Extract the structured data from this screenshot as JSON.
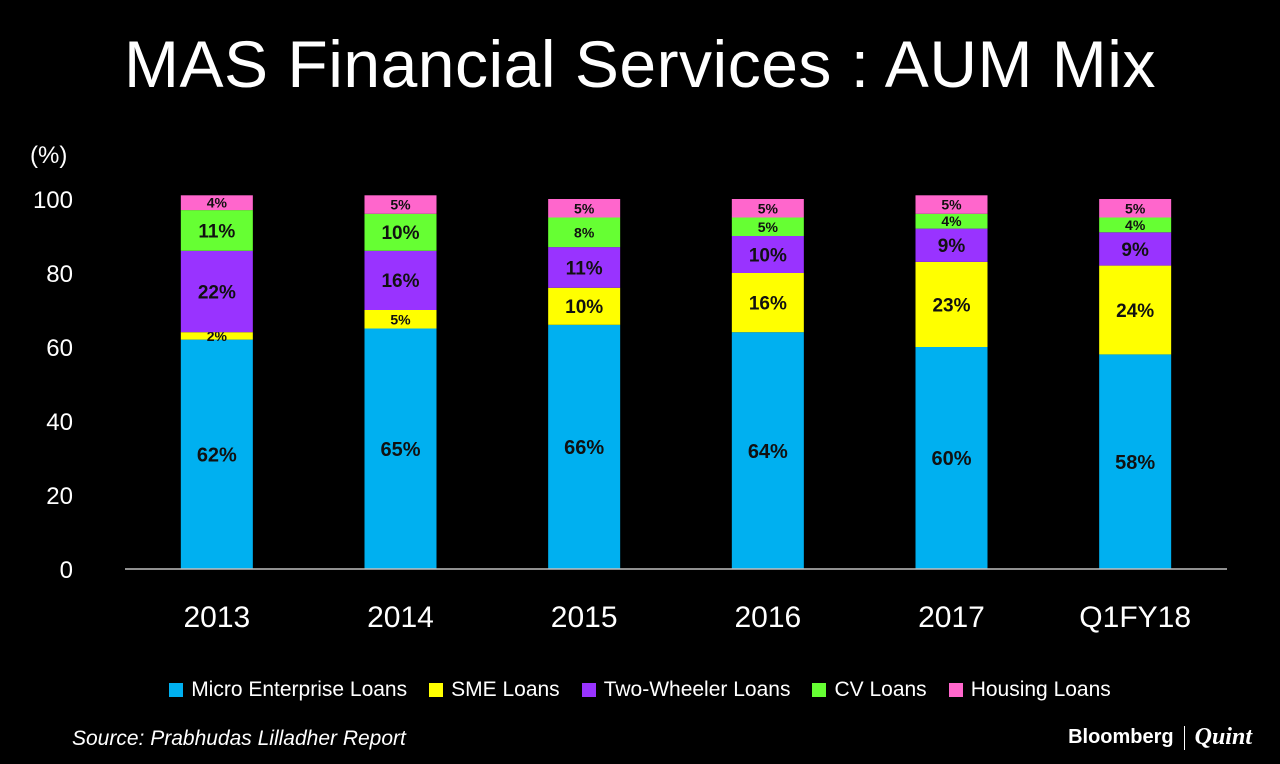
{
  "chart_data": {
    "type": "bar",
    "stacked": true,
    "title": "MAS Financial Services : AUM Mix",
    "ylabel": "(%)",
    "ylim": [
      0,
      100
    ],
    "yticks": [
      0,
      20,
      40,
      60,
      80,
      100
    ],
    "grid": false,
    "legend_position": "bottom",
    "categories": [
      "2013",
      "2014",
      "2015",
      "2016",
      "2017",
      "Q1FY18"
    ],
    "series": [
      {
        "name": "Micro Enterprise Loans",
        "color": "#00B0F0",
        "values": [
          62,
          65,
          66,
          64,
          60,
          58
        ]
      },
      {
        "name": "SME Loans",
        "color": "#FFFF00",
        "values": [
          2,
          5,
          10,
          16,
          23,
          24
        ]
      },
      {
        "name": "Two-Wheeler Loans",
        "color": "#9933FF",
        "values": [
          22,
          16,
          11,
          10,
          9,
          9
        ]
      },
      {
        "name": "CV Loans",
        "color": "#66FF33",
        "values": [
          11,
          10,
          8,
          5,
          4,
          4
        ]
      },
      {
        "name": "Housing Loans",
        "color": "#FF66CC",
        "values": [
          4,
          5,
          5,
          5,
          5,
          5
        ]
      }
    ],
    "label_suffix": "%"
  },
  "source": "Source: Prabhudas Lilladher Report",
  "brand": {
    "left": "Bloomberg",
    "right": "Quint"
  }
}
